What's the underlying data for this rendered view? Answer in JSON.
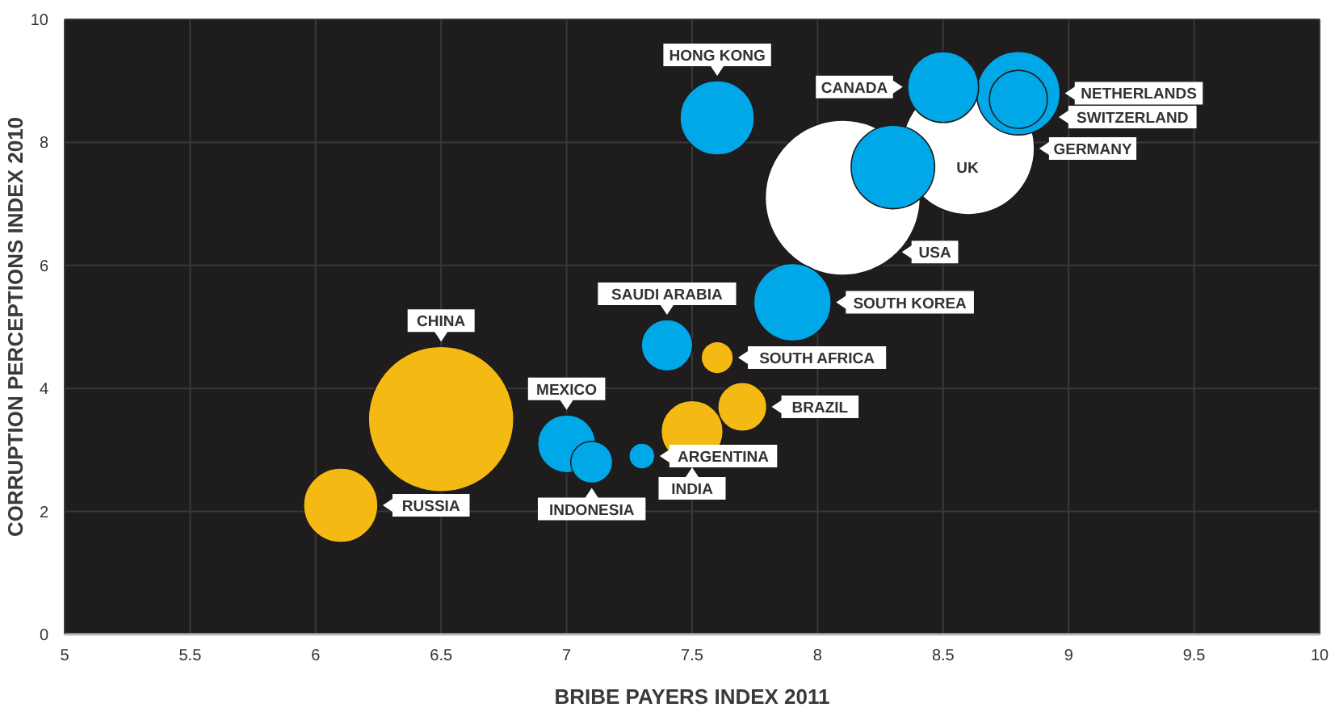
{
  "chart_data": {
    "type": "bubble",
    "xlabel": "BRIBE PAYERS INDEX 2011",
    "ylabel": "CORRUPTION PERCEPTIONS INDEX 2010",
    "xlim": [
      5,
      10
    ],
    "ylim": [
      0,
      10
    ],
    "xticks": [
      5,
      5.5,
      6,
      6.5,
      7,
      7.5,
      8,
      8.5,
      9,
      9.5,
      10
    ],
    "yticks": [
      0,
      2,
      4,
      6,
      8,
      10
    ],
    "grid": true,
    "series": [
      {
        "color": "#00a8e8",
        "x": [
          7.6,
          8.5,
          8.8,
          8.8,
          8.3,
          7.9,
          7.4,
          7.0,
          7.1,
          7.3
        ],
        "values": [
          8.4,
          8.9,
          8.8,
          8.7,
          7.6,
          5.4,
          4.7,
          3.1,
          2.8,
          2.9
        ],
        "sizes": [
          0.23,
          0.21,
          0.29,
          0.14,
          0.29,
          0.25,
          0.11,
          0.14,
          0.073,
          0.028
        ]
      },
      {
        "color": "#ffffff",
        "x": [
          8.6,
          8.1
        ],
        "values": [
          7.9,
          7.1
        ],
        "sizes": [
          0.73,
          1
        ]
      },
      {
        "color": "#f5b914",
        "x": [
          7.6,
          6.5,
          6.1,
          7.5,
          7.7
        ],
        "values": [
          4.5,
          3.5,
          2.1,
          3.3,
          3.7
        ],
        "sizes": [
          0.043,
          0.88,
          0.23,
          0.16,
          0.1
        ]
      }
    ],
    "annotations": [
      "HONG KONG",
      "CANADA",
      "NETHERLANDS",
      "SWITZERLAND",
      "UK",
      "SOUTH KOREA",
      "SAUDI ARABIA",
      "MEXICO",
      "INDONESIA",
      "ARGENTINA",
      "GERMANY",
      "USA",
      "SOUTH AFRICA",
      "CHINA",
      "RUSSIA",
      "INDIA",
      "BRAZIL"
    ]
  }
}
